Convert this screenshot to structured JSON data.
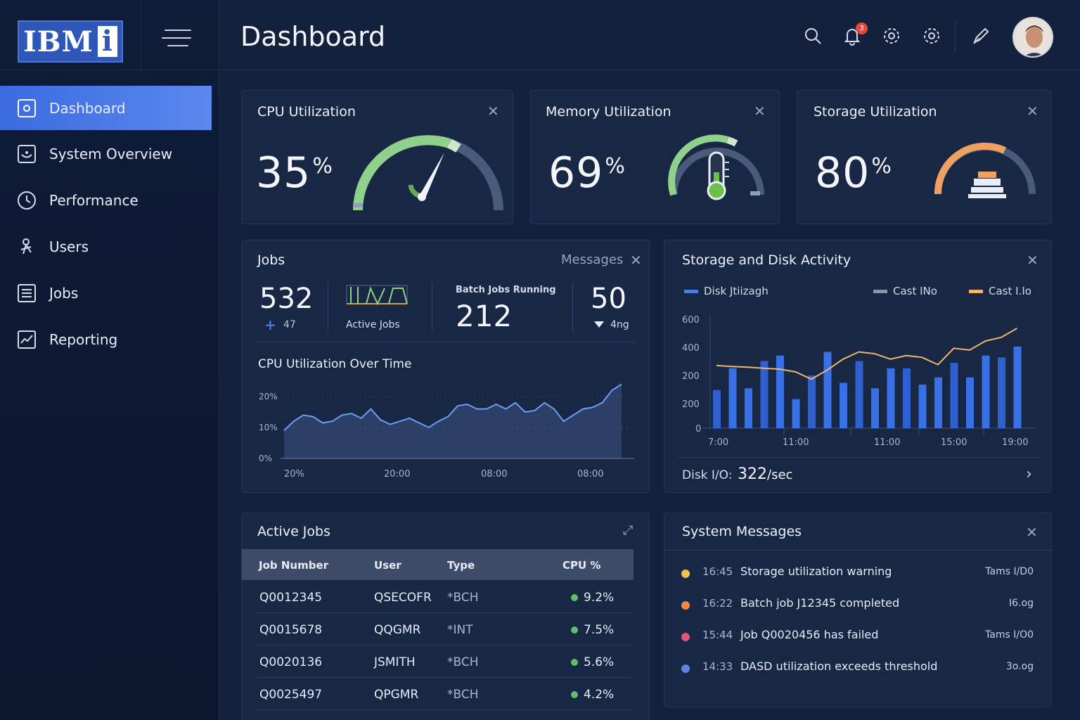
{
  "app": {
    "logo_text": "IBM",
    "logo_i": "i",
    "page_title": "Dashboard"
  },
  "sidebar": {
    "items": [
      {
        "label": "Dashboard",
        "icon": "dashboard-icon",
        "active": true
      },
      {
        "label": "System Overview",
        "icon": "system-overview-icon"
      },
      {
        "label": "Performance",
        "icon": "clock-icon"
      },
      {
        "label": "Users",
        "icon": "users-icon"
      },
      {
        "label": "Jobs",
        "icon": "jobs-icon"
      },
      {
        "label": "Reporting",
        "icon": "reporting-icon"
      }
    ]
  },
  "header": {
    "notification_count": "3",
    "icons": [
      "search-icon",
      "bell-icon",
      "gear-icon",
      "settings-icon",
      "pen-icon"
    ]
  },
  "cpu": {
    "title": "CPU Utilization",
    "value": "35",
    "unit": "%",
    "level": 0.35,
    "color": "#8fd18a"
  },
  "memory": {
    "title": "Memory Utilization",
    "value": "69",
    "unit": "%",
    "level": 0.69,
    "color": "#8fd18a"
  },
  "storage": {
    "title": "Storage Utilization",
    "value": "80",
    "unit": "%",
    "level": 0.8,
    "color": "#f0a060"
  },
  "jobs": {
    "title": "Jobs",
    "messages_link": "Messages",
    "total": "532",
    "total_delta": "47",
    "active_label": "Active Jobs",
    "batch_label": "Batch Jobs Running",
    "batch_value": "212",
    "right_value": "50",
    "right_sub": "4ng",
    "chart_title": "CPU Utilization Over Time"
  },
  "storage_activity": {
    "title": "Storage and Disk Activity",
    "legend": [
      "Disk Jtiizagh",
      "Cast INo",
      "Cast I.Io"
    ],
    "disk_io_label": "Disk I/O:",
    "disk_io_value": "322",
    "disk_io_unit": "/sec"
  },
  "active_jobs": {
    "title": "Active Jobs",
    "columns": [
      "Job Number",
      "User",
      "Type",
      "CPU %"
    ],
    "rows": [
      {
        "job": "Q0012345",
        "user": "QSECOFR",
        "type": "*BCH",
        "cpu": "9.2%",
        "icon": "#5fbf6a"
      },
      {
        "job": "Q0015678",
        "user": "QQGMR",
        "type": "*INT",
        "cpu": "7.5%",
        "icon": "#5fbf6a"
      },
      {
        "job": "Q0020136",
        "user": "JSMITH",
        "type": "*BCH",
        "cpu": "5.6%",
        "icon": "#5fbf6a"
      },
      {
        "job": "Q0025497",
        "user": "QPGMR",
        "type": "*BCH",
        "cpu": "4.2%",
        "icon": "#5fbf6a"
      }
    ]
  },
  "system_messages": {
    "title": "System Messages",
    "items": [
      {
        "time": "16:45",
        "text": "Storage utilization warning",
        "meta": "Tams I/D0",
        "color": "#f2c44e"
      },
      {
        "time": "16:22",
        "text": "Batch job J12345 completed",
        "meta": "I6.og",
        "color": "#f08a4b"
      },
      {
        "time": "15:44",
        "text": "Job Q0020456 has failed",
        "meta": "Tams I/O0",
        "color": "#e0567a"
      },
      {
        "time": "14:33",
        "text": "DASD utilization exceeds threshold",
        "meta": "3o.og",
        "color": "#5c86e0"
      }
    ]
  },
  "chart_data": [
    {
      "type": "area",
      "title": "CPU Utilization Over Time",
      "ytick_labels": [
        "0%",
        "10%",
        "20%"
      ],
      "ylim": [
        0,
        25
      ],
      "xtick_labels": [
        "20%",
        "20:00",
        "08:00",
        "08:00"
      ],
      "values": [
        9,
        12,
        14,
        13.5,
        11.5,
        12,
        14,
        14.5,
        13,
        16,
        12.5,
        11,
        12,
        13,
        11.5,
        10,
        12,
        13.5,
        17,
        17.5,
        16,
        16,
        17.5,
        16,
        18,
        15,
        15.5,
        18,
        16,
        12,
        14,
        16,
        16.5,
        18,
        22,
        24
      ]
    },
    {
      "type": "bar",
      "title": "Storage and Disk Activity",
      "ytick_labels": [
        "0",
        "200",
        "200",
        "400",
        "600"
      ],
      "ylim": [
        0,
        600
      ],
      "xtick_labels": [
        "7:00",
        "11:00",
        "11:00",
        "15:00",
        "19:00"
      ],
      "series": [
        {
          "name": "Disk Jtiizagh",
          "type": "bar",
          "values": [
            210,
            330,
            220,
            370,
            400,
            160,
            290,
            420,
            250,
            370,
            220,
            330,
            330,
            240,
            280,
            360,
            280,
            400,
            390,
            450
          ]
        },
        {
          "name": "Cast I.Io",
          "type": "line",
          "values": [
            345,
            340,
            336,
            330,
            325,
            310,
            270,
            320,
            380,
            420,
            410,
            380,
            400,
            390,
            350,
            440,
            430,
            480,
            500,
            550
          ]
        }
      ]
    }
  ]
}
